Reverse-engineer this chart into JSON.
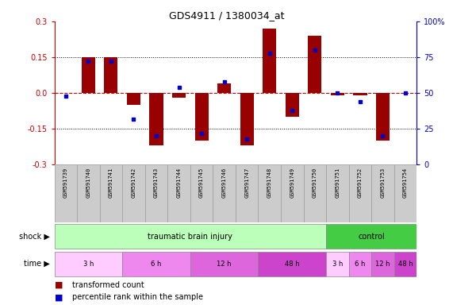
{
  "title": "GDS4911 / 1380034_at",
  "samples": [
    "GSM591739",
    "GSM591740",
    "GSM591741",
    "GSM591742",
    "GSM591743",
    "GSM591744",
    "GSM591745",
    "GSM591746",
    "GSM591747",
    "GSM591748",
    "GSM591749",
    "GSM591750",
    "GSM591751",
    "GSM591752",
    "GSM591753",
    "GSM591754"
  ],
  "transformed_count": [
    0.0,
    0.15,
    0.15,
    -0.05,
    -0.22,
    -0.02,
    -0.2,
    0.04,
    -0.22,
    0.27,
    -0.1,
    0.24,
    -0.01,
    -0.01,
    -0.2,
    0.0
  ],
  "percentile_rank": [
    48,
    72,
    72,
    32,
    20,
    54,
    22,
    58,
    18,
    78,
    38,
    80,
    50,
    44,
    20,
    50
  ],
  "ylim_left": [
    -0.3,
    0.3
  ],
  "ylim_right": [
    0,
    100
  ],
  "yticks_left": [
    -0.3,
    -0.15,
    0.0,
    0.15,
    0.3
  ],
  "yticks_right": [
    0,
    25,
    50,
    75,
    100
  ],
  "bar_color": "#990000",
  "dot_color": "#0000cc",
  "zero_line_color": "#cc0000",
  "dotted_line_color": "#000000",
  "shock_groups": [
    {
      "label": "traumatic brain injury",
      "start": 0,
      "end": 12,
      "color": "#bbffbb"
    },
    {
      "label": "control",
      "start": 12,
      "end": 16,
      "color": "#44cc44"
    }
  ],
  "time_groups": [
    {
      "label": "3 h",
      "start": 0,
      "end": 3,
      "color": "#ffccff"
    },
    {
      "label": "6 h",
      "start": 3,
      "end": 6,
      "color": "#ee88ee"
    },
    {
      "label": "12 h",
      "start": 6,
      "end": 9,
      "color": "#dd66dd"
    },
    {
      "label": "48 h",
      "start": 9,
      "end": 12,
      "color": "#cc44cc"
    },
    {
      "label": "3 h",
      "start": 12,
      "end": 13,
      "color": "#ffccff"
    },
    {
      "label": "6 h",
      "start": 13,
      "end": 14,
      "color": "#ee88ee"
    },
    {
      "label": "12 h",
      "start": 14,
      "end": 15,
      "color": "#dd66dd"
    },
    {
      "label": "48 h",
      "start": 15,
      "end": 16,
      "color": "#cc44cc"
    }
  ],
  "label_transformed": "transformed count",
  "label_percentile": "percentile rank within the sample",
  "shock_label": "shock",
  "time_label": "time",
  "sample_bg": "#cccccc",
  "plot_bg": "#ffffff"
}
